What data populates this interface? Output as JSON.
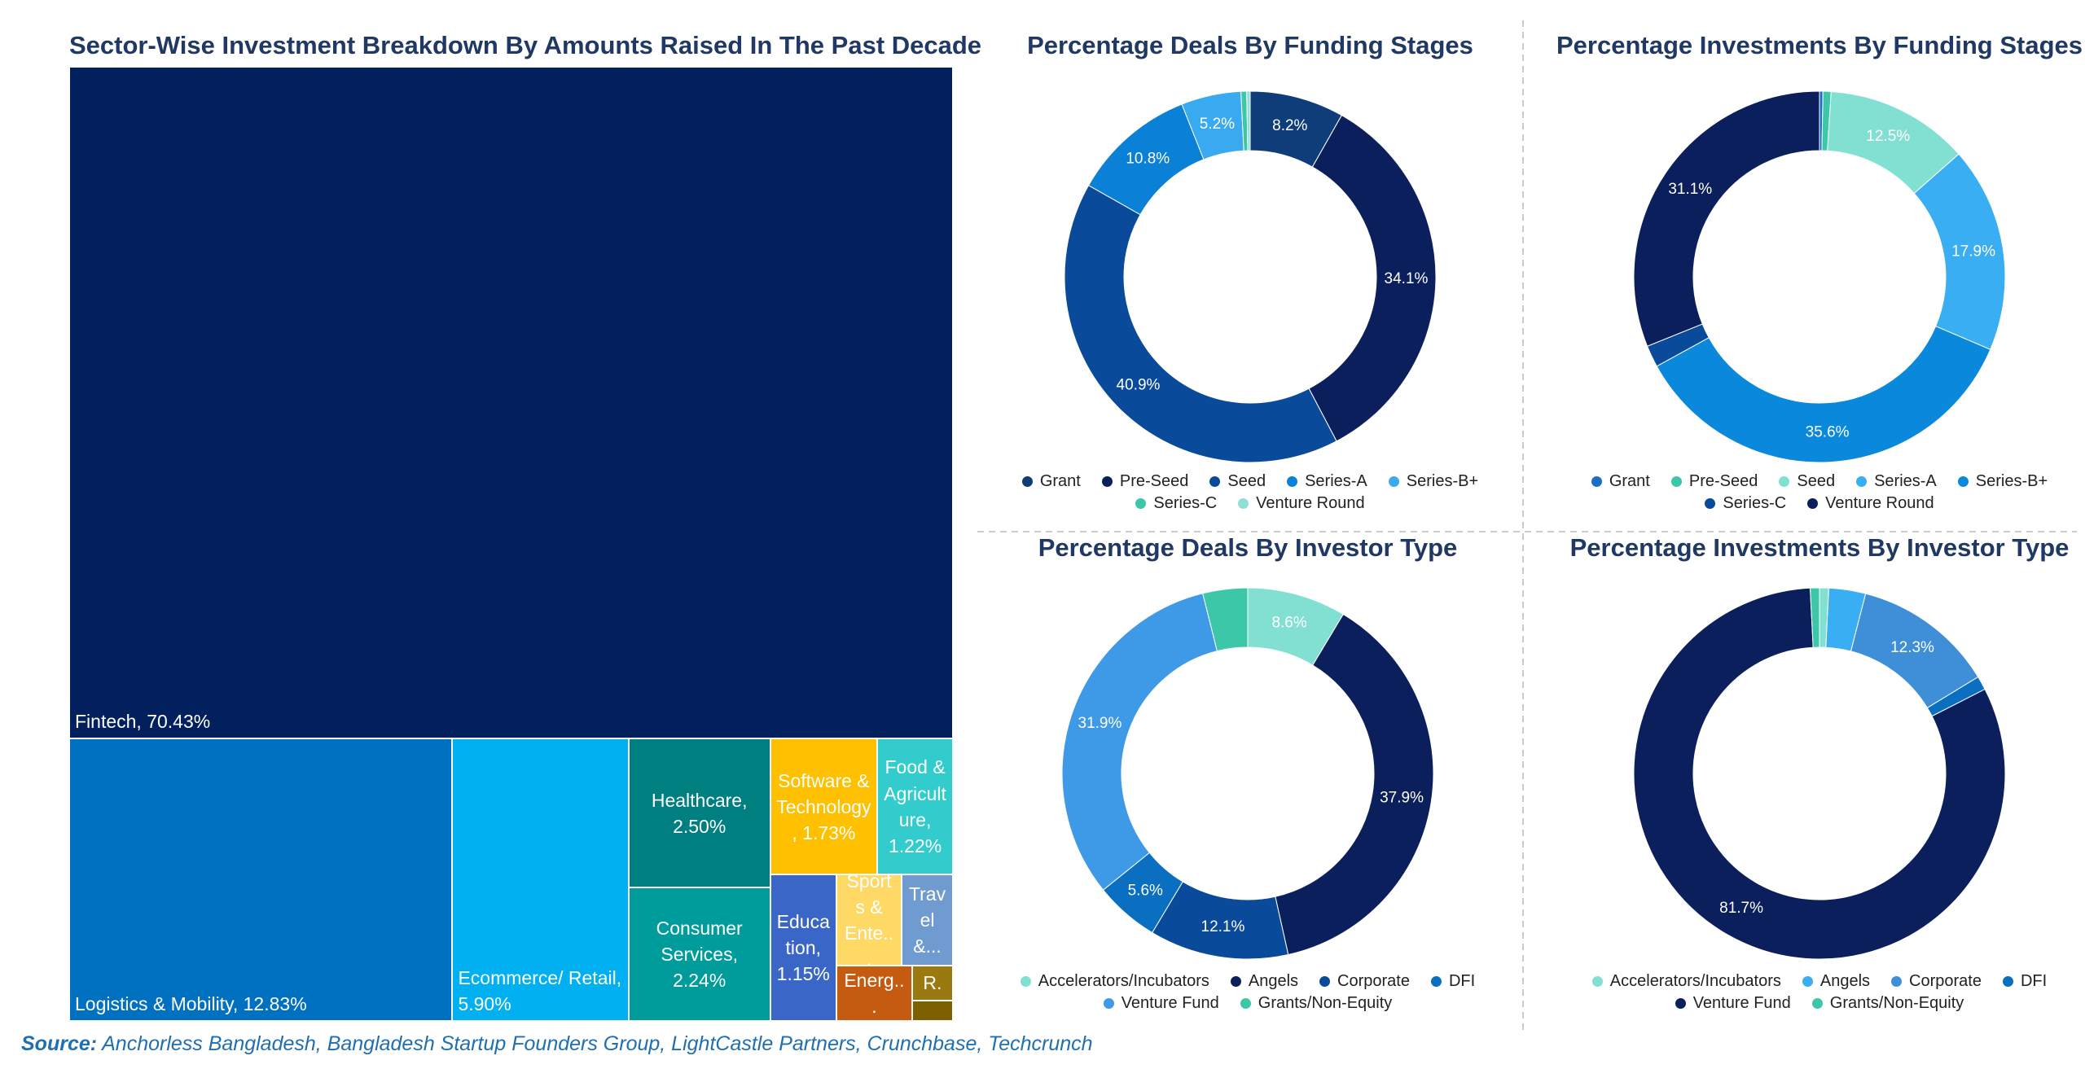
{
  "chart_data": [
    {
      "type": "treemap",
      "title": "Sector-Wise Investment Breakdown By Amounts Raised In The Past Decade",
      "categories": [
        "Fintech, 70.43%",
        "Logistics & Mobility, 12.83%",
        "Ecommerce/ Retail, 5.90%",
        "Healthcare, 2.50%",
        "Consumer Services, 2.24%",
        "Software & Technology, 1.73%",
        "Food & Agriculture, 1.22%",
        "Education, 1.15%",
        "Sports & Ente...",
        "Travel &...",
        "Energ...",
        "R.",
        null
      ],
      "values": [
        70.43,
        12.83,
        5.9,
        2.5,
        2.24,
        1.73,
        1.22,
        1.15,
        0.7,
        0.55,
        0.5,
        0.17,
        0.1
      ],
      "colors": [
        "#021f5e",
        "#0070c0",
        "#00b0f0",
        "#007f80",
        "#009b9b",
        "#ffc000",
        "#33cccc",
        "#3a66c8",
        "#ffd966",
        "#6f9bd0",
        "#c55a11",
        "#9a7a10",
        "#7f6000"
      ],
      "source_label": "Source:",
      "source": "Anchorless Bangladesh, Bangladesh Startup Founders Group, LightCastle Partners, Crunchbase, Techcrunch"
    },
    {
      "type": "donut",
      "title": "Percentage Deals By Funding Stages",
      "categories": [
        "Grant",
        "Pre-Seed",
        "Seed",
        "Series-A",
        "Series-B+",
        "Series-C",
        "Venture Round"
      ],
      "values": [
        8.2,
        34.1,
        40.9,
        10.8,
        5.2,
        0.5,
        0.3
      ],
      "value_labels": [
        "8.2%",
        "34.1%",
        "40.9%",
        "10.8%",
        "5.2%",
        null,
        null
      ],
      "colors": [
        "#0f3d7a",
        "#0b1f5c",
        "#0a4a9a",
        "#0a80d6",
        "#3aaaf0",
        "#3cc7a8",
        "#8fe0d4"
      ]
    },
    {
      "type": "donut",
      "title": "Percentage Investments By Funding Stages",
      "categories": [
        "Grant",
        "Pre-Seed",
        "Seed",
        "Series-A",
        "Series-B+",
        "Series-C",
        "Venture Round"
      ],
      "values": [
        0.3,
        0.7,
        12.5,
        17.9,
        35.6,
        1.9,
        31.1
      ],
      "value_labels": [
        null,
        null,
        "12.5%",
        "17.9%",
        "35.6%",
        null,
        "31.1%"
      ],
      "colors": [
        "#1a6fc4",
        "#3cc7a8",
        "#82e0d2",
        "#3aaef2",
        "#0a88dc",
        "#0a4a9a",
        "#0b1f5c"
      ]
    },
    {
      "type": "donut",
      "title": "Percentage Deals By Investor Type",
      "categories": [
        "Accelerators/Incubators",
        "Angels",
        "Corporate",
        "DFI",
        "Venture Fund",
        "Grants/Non-Equity"
      ],
      "values": [
        8.6,
        37.9,
        12.1,
        5.6,
        31.9,
        3.9
      ],
      "value_labels": [
        "8.6%",
        "37.9%",
        "12.1%",
        "5.6%",
        "31.9%",
        null
      ],
      "colors": [
        "#82e0d2",
        "#0b1f5c",
        "#0a4a9a",
        "#0a6fc0",
        "#3e9ae6",
        "#3cc7a8"
      ]
    },
    {
      "type": "donut",
      "title": "Percentage Investments By Investor Type",
      "categories": [
        "Accelerators/Incubators",
        "Angels",
        "Corporate",
        "DFI",
        "Venture Fund",
        "Grants/Non-Equity"
      ],
      "values": [
        0.8,
        3.2,
        12.3,
        1.2,
        81.7,
        0.8
      ],
      "value_labels": [
        null,
        null,
        "12.3%",
        null,
        "81.7%",
        null
      ],
      "colors": [
        "#82e0d2",
        "#3aaef2",
        "#3e8fd8",
        "#0a6fc0",
        "#0b1f5c",
        "#3cc7a8"
      ]
    }
  ]
}
